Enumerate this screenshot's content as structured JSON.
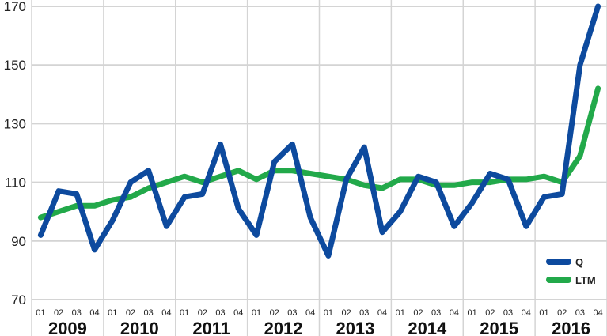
{
  "chart_data": {
    "type": "line",
    "title": "",
    "xlabel": "",
    "ylabel": "",
    "ylim": [
      70,
      170
    ],
    "yticks": [
      70,
      90,
      110,
      130,
      150,
      170
    ],
    "grid": true,
    "legend_position": "bottom-right",
    "years": [
      "2009",
      "2010",
      "2011",
      "2012",
      "2013",
      "2014",
      "2015",
      "2016"
    ],
    "quarters": [
      "01",
      "02",
      "03",
      "04"
    ],
    "series": [
      {
        "name": "Q",
        "color": "#0d4a9e",
        "values": [
          92,
          107,
          106,
          87,
          97,
          110,
          114,
          95,
          105,
          106,
          123,
          101,
          92,
          117,
          123,
          98,
          85,
          111,
          122,
          93,
          100,
          112,
          110,
          95,
          103,
          113,
          111,
          95,
          105,
          106,
          150,
          170
        ]
      },
      {
        "name": "LTM",
        "color": "#22a94a",
        "values": [
          98,
          100,
          102,
          102,
          104,
          105,
          108,
          110,
          112,
          110,
          112,
          114,
          111,
          114,
          114,
          113,
          112,
          111,
          109,
          108,
          111,
          111,
          109,
          109,
          110,
          110,
          111,
          111,
          112,
          110,
          119,
          142
        ]
      }
    ]
  }
}
